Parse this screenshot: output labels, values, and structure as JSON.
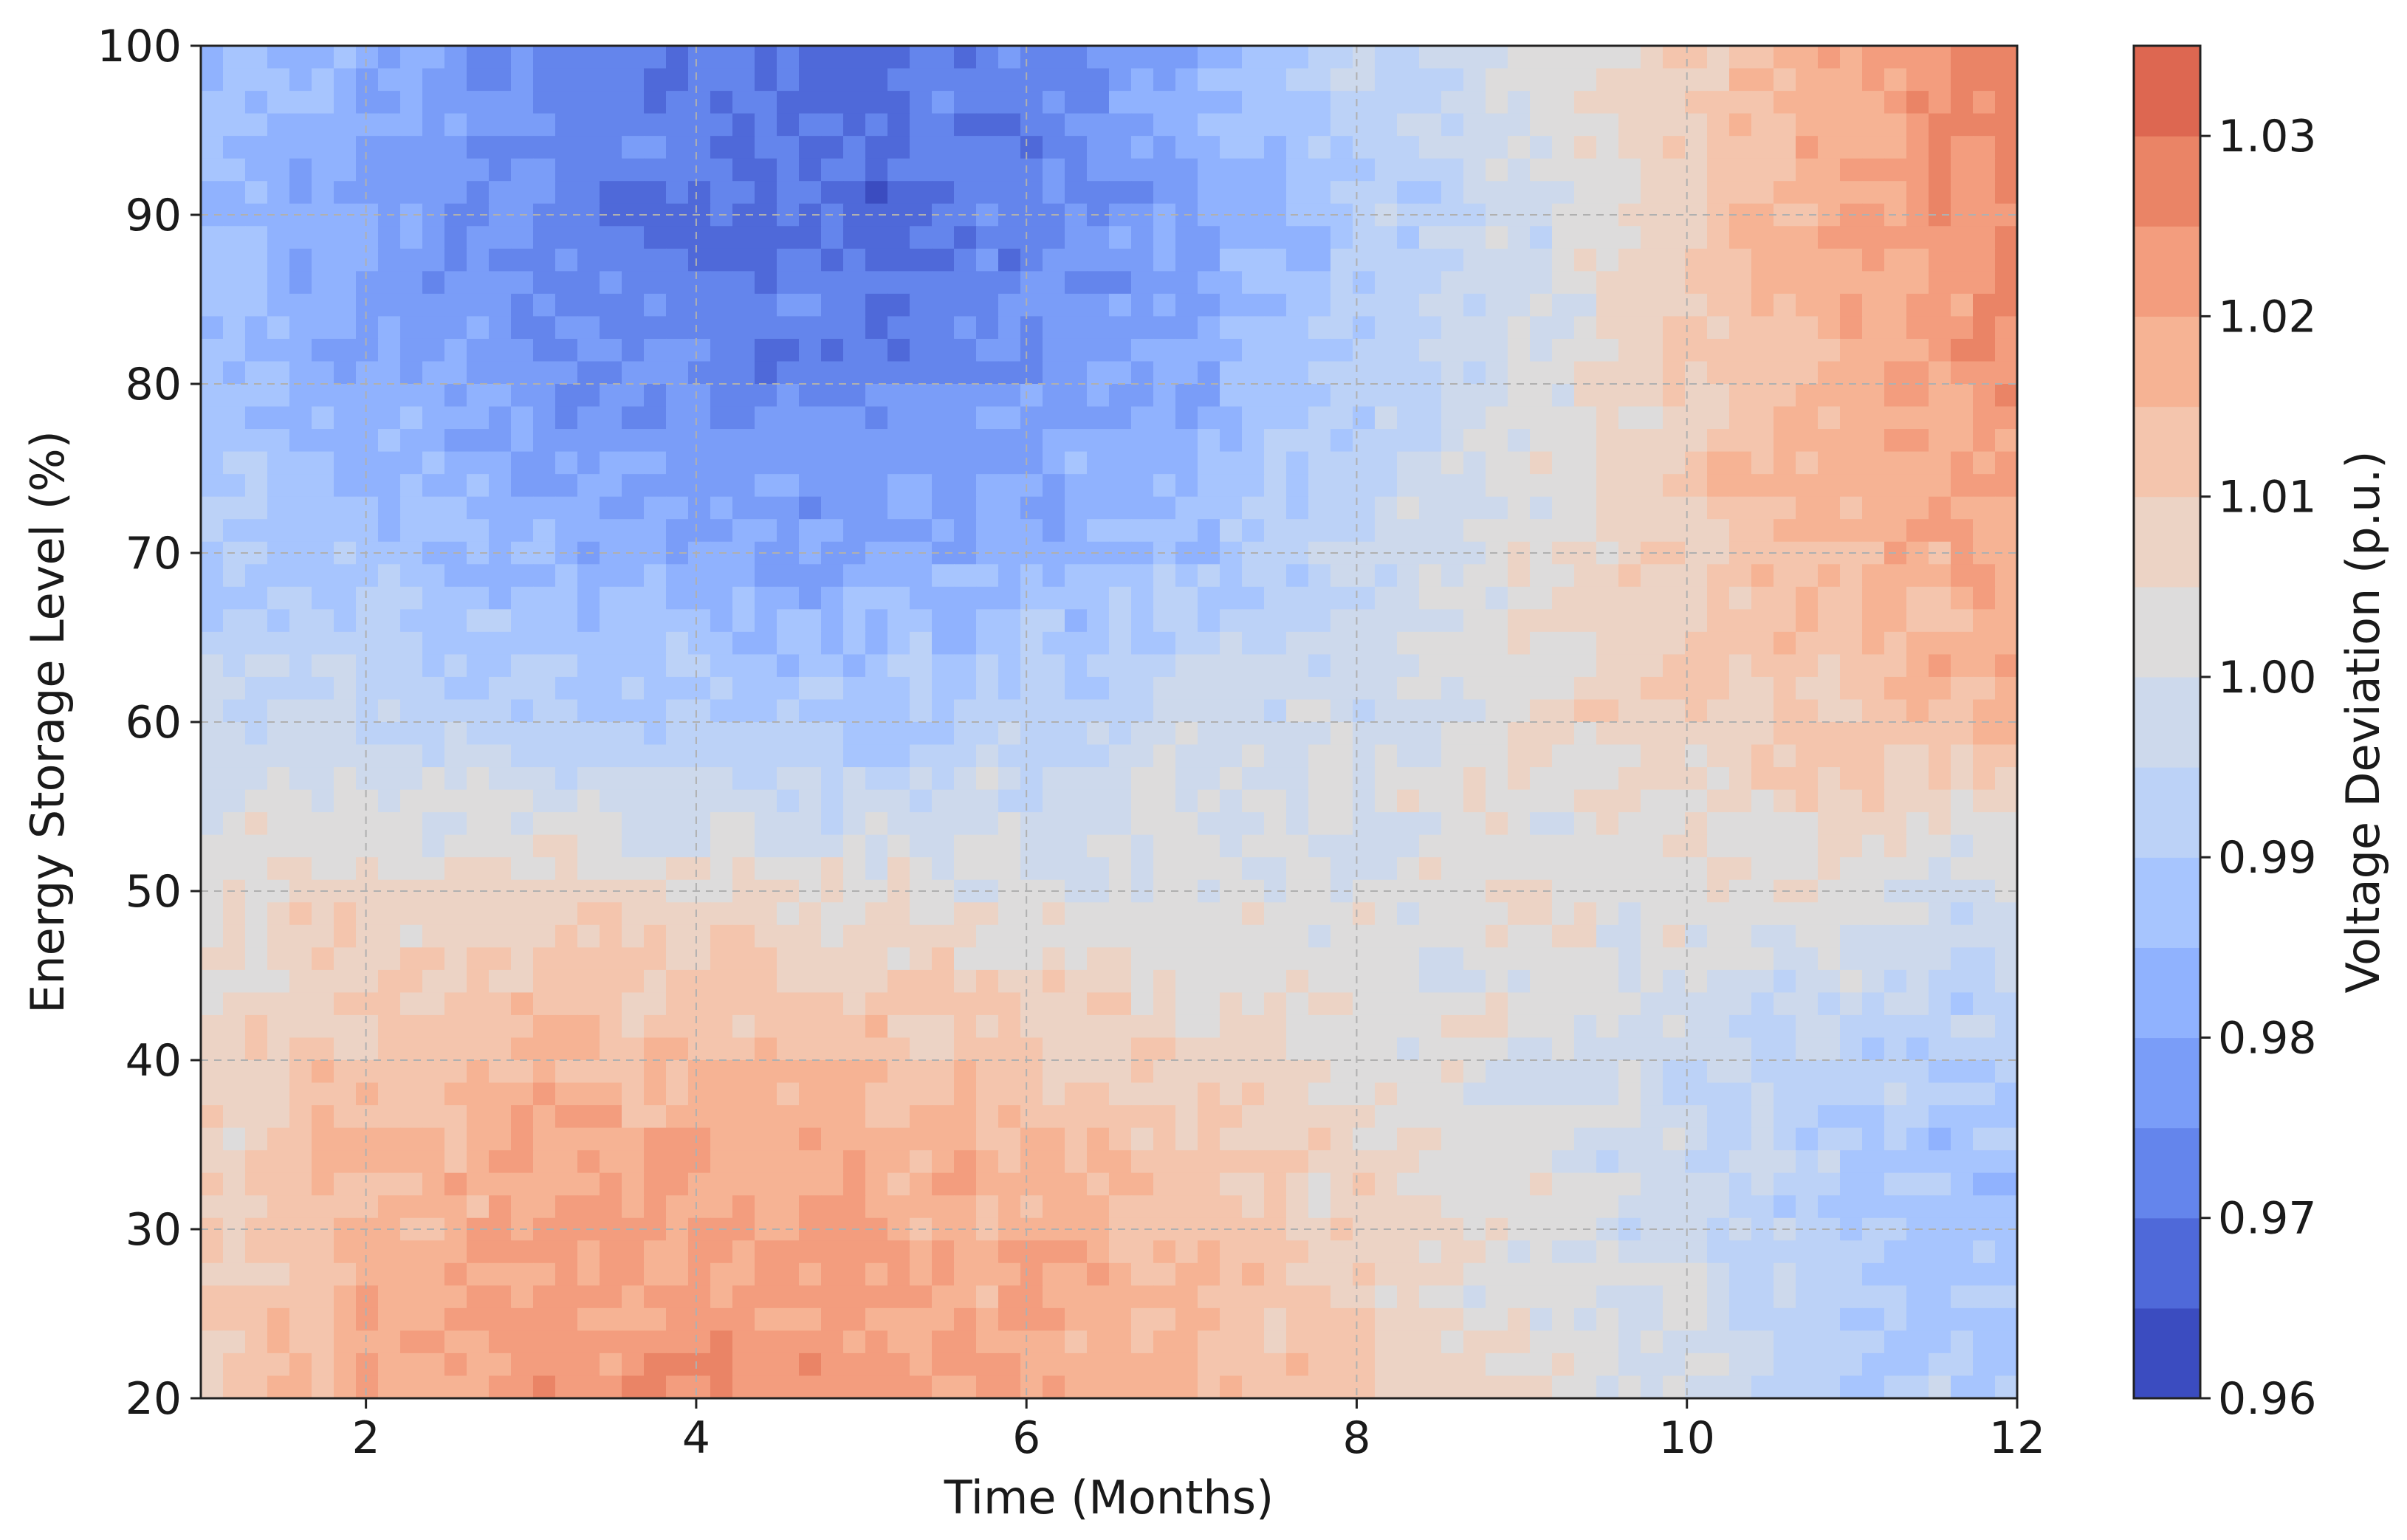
{
  "chart_data": {
    "type": "heatmap",
    "subtype": "filled-contour",
    "title": "",
    "xlabel": "Time (Months)",
    "ylabel": "Energy Storage Level (%)",
    "colorbar_label": "Voltage Deviation (p.u.)",
    "xlim": [
      1,
      12
    ],
    "ylim": [
      20,
      100
    ],
    "xticks": [
      2,
      4,
      6,
      8,
      10,
      12
    ],
    "xtick_labels": [
      "2",
      "4",
      "6",
      "8",
      "10",
      "12"
    ],
    "yticks": [
      20,
      30,
      40,
      50,
      60,
      70,
      80,
      90,
      100
    ],
    "ytick_labels": [
      "20",
      "30",
      "40",
      "50",
      "60",
      "70",
      "80",
      "90",
      "100"
    ],
    "colorbar_range": [
      0.96,
      1.035
    ],
    "colorbar_levels": [
      0.96,
      0.965,
      0.97,
      0.975,
      0.98,
      0.985,
      0.99,
      0.995,
      1.0,
      1.005,
      1.01,
      1.015,
      1.02,
      1.025,
      1.03,
      1.035
    ],
    "colorbar_ticks": [
      0.96,
      0.97,
      0.98,
      0.99,
      1.0,
      1.01,
      1.02,
      1.03
    ],
    "colorbar_tick_labels": [
      "0.96",
      "0.97",
      "0.98",
      "0.99",
      "1.00",
      "1.01",
      "1.02",
      "1.03"
    ],
    "colormap": "coolwarm",
    "level_colors": [
      "#3b4cc0",
      "#4f69d9",
      "#6485ec",
      "#7a9df8",
      "#90b2fe",
      "#a7c5fe",
      "#bcd2f7",
      "#cdd9ec",
      "#dddcdc",
      "#ecd3c5",
      "#f4c5ad",
      "#f6b394",
      "#f39d7e",
      "#ea8466",
      "#dd6751",
      "#c43c3c"
    ],
    "grid": true,
    "x": [
      1,
      2,
      3,
      4,
      5,
      6,
      7,
      8,
      9,
      10,
      11,
      12
    ],
    "y": [
      20,
      30,
      40,
      50,
      60,
      70,
      80,
      90,
      100
    ],
    "z": [
      [
        1.01,
        1.018,
        1.022,
        1.024,
        1.022,
        1.02,
        1.016,
        1.01,
        1.004,
        0.998,
        0.993,
        0.99
      ],
      [
        1.01,
        1.017,
        1.02,
        1.022,
        1.02,
        1.018,
        1.014,
        1.008,
        1.003,
        0.997,
        0.991,
        0.986
      ],
      [
        1.008,
        1.012,
        1.015,
        1.016,
        1.014,
        1.012,
        1.008,
        1.004,
        1.0,
        0.996,
        0.992,
        0.99
      ],
      [
        1.004,
        1.006,
        1.008,
        1.005,
        1.004,
        1.002,
        1.001,
        1.001,
        1.003,
        1.004,
        1.002,
        0.998
      ],
      [
        0.996,
        0.995,
        0.992,
        0.99,
        0.988,
        0.993,
        0.996,
        0.999,
        1.004,
        1.008,
        1.012,
        1.016
      ],
      [
        0.99,
        0.988,
        0.984,
        0.982,
        0.981,
        0.984,
        0.988,
        0.994,
        1.002,
        1.01,
        1.016,
        1.02
      ],
      [
        0.988,
        0.982,
        0.978,
        0.974,
        0.972,
        0.976,
        0.982,
        0.992,
        1.0,
        1.01,
        1.018,
        1.024
      ],
      [
        0.986,
        0.979,
        0.975,
        0.97,
        0.968,
        0.972,
        0.98,
        0.99,
        0.998,
        1.01,
        1.02,
        1.026
      ],
      [
        0.988,
        0.982,
        0.976,
        0.972,
        0.968,
        0.973,
        0.983,
        0.992,
        1.0,
        1.01,
        1.02,
        1.028
      ]
    ]
  }
}
